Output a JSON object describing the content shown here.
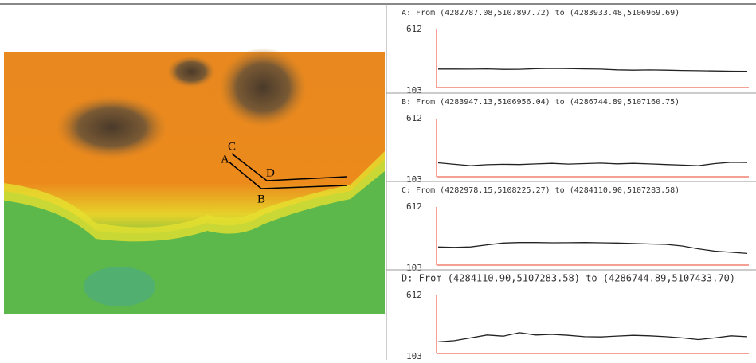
{
  "map": {
    "labels": [
      "A",
      "B",
      "C",
      "D"
    ]
  },
  "chart_data": [
    {
      "type": "line",
      "title": "A: From (4282787.08,5107897.72) to (4283933.48,5106969.69)",
      "values": [
        265,
        265,
        264,
        266,
        262,
        263,
        268,
        270,
        269,
        266,
        264,
        258,
        255,
        257,
        255,
        252,
        250,
        248,
        246,
        245
      ],
      "color": "#222222",
      "axis_color": "#e8402a",
      "ylim": [
        103,
        612
      ],
      "yticks": [
        103,
        612
      ]
    },
    {
      "type": "line",
      "title": "B: From (4283947.13,5106956.04) to (4286744.89,5107160.75)",
      "values": [
        225,
        212,
        200,
        208,
        212,
        210,
        215,
        220,
        214,
        218,
        222,
        216,
        220,
        215,
        210,
        205,
        200,
        218,
        230,
        228
      ],
      "color": "#222222",
      "axis_color": "#e8402a",
      "ylim": [
        103,
        612
      ],
      "yticks": [
        103,
        612
      ]
    },
    {
      "type": "line",
      "title": "C: From (4282978.15,5108225.27) to (4284110.90,5107283.58)",
      "values": [
        261,
        258,
        262,
        280,
        296,
        300,
        300,
        298,
        299,
        300,
        298,
        296,
        292,
        288,
        284,
        270,
        245,
        225,
        215,
        205
      ],
      "color": "#222222",
      "axis_color": "#e8402a",
      "ylim": [
        103,
        612
      ],
      "yticks": [
        103,
        612
      ]
    },
    {
      "type": "line",
      "title": "D: From (4284110.90,5107283.58) to (4286744.89,5107433.70)",
      "values": [
        205,
        215,
        240,
        265,
        255,
        285,
        265,
        270,
        262,
        250,
        248,
        256,
        262,
        258,
        250,
        240,
        225,
        240,
        258,
        250
      ],
      "color": "#222222",
      "axis_color": "#e8402a",
      "ylim": [
        103,
        612
      ],
      "yticks": [
        103,
        612
      ]
    }
  ]
}
